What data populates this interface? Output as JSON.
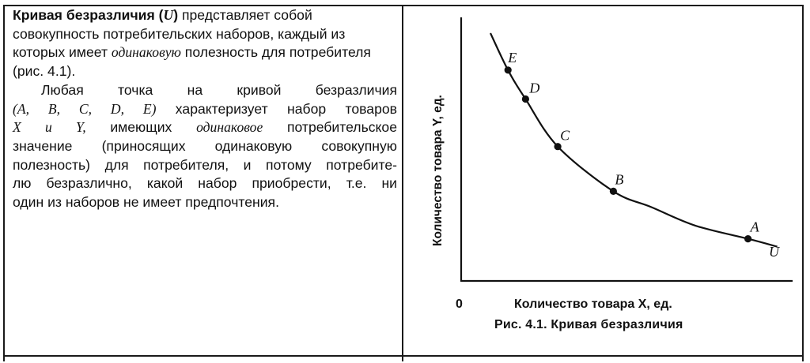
{
  "text": {
    "p1_term": "Кривая безразличия (",
    "p1_symbol": "U",
    "p1_term_end": ")",
    "p1_rest_a": " представляет собой совокупность потребительских наборов, каждый из которых имеет ",
    "p1_emph": "одинаковую",
    "p1_rest_b": " полезность для потребителя (рис. 4.1).",
    "p2_line1": "Любая точка на кривой безразличия",
    "p2_line2_points": "(A, B, C, D, E)",
    "p2_line2_rest": " характеризует набор товаров",
    "p2_line3_xy": "X и Y,",
    "p2_line3_rest": " имеющих ",
    "p2_line3_emph": "одинаковое",
    "p2_line3_end": " потребительское",
    "p2_line4": "значение (приносящих одинаковую совокупную",
    "p2_line5": "полезность) для потребителя, и потому потребите-",
    "p2_line6": "лю безразлично, какой набор приобрести, т.е. ни",
    "p2_line7": "один из наборов не имеет предпочтения."
  },
  "figure": {
    "caption": "Рис. 4.1. Кривая безразличия",
    "xlabel": "Количество товара X, ед.",
    "ylabel": "Количество товара Y, ед.",
    "origin_label": "0",
    "curve_label": "U",
    "colors": {
      "ink": "#111111"
    }
  },
  "chart_data": {
    "type": "line",
    "title": "",
    "xlabel": "Количество товара X, ед.",
    "ylabel": "Количество товара Y, ед.",
    "axis_ticks": "none",
    "origin_label": "0",
    "curve_name": "U",
    "x": [
      1.0,
      1.6,
      2.2,
      3.3,
      5.2,
      6.5,
      8.0,
      9.8,
      10.8
    ],
    "y": [
      9.4,
      8.0,
      6.9,
      5.1,
      3.4,
      2.8,
      2.1,
      1.6,
      1.3
    ],
    "xlim": [
      0,
      11
    ],
    "ylim": [
      0,
      10
    ],
    "labeled_points": [
      {
        "name": "E",
        "x": 1.6,
        "y": 8.0
      },
      {
        "name": "D",
        "x": 2.2,
        "y": 6.9
      },
      {
        "name": "C",
        "x": 3.3,
        "y": 5.1
      },
      {
        "name": "B",
        "x": 5.2,
        "y": 3.4
      },
      {
        "name": "A",
        "x": 9.8,
        "y": 1.6
      }
    ]
  }
}
